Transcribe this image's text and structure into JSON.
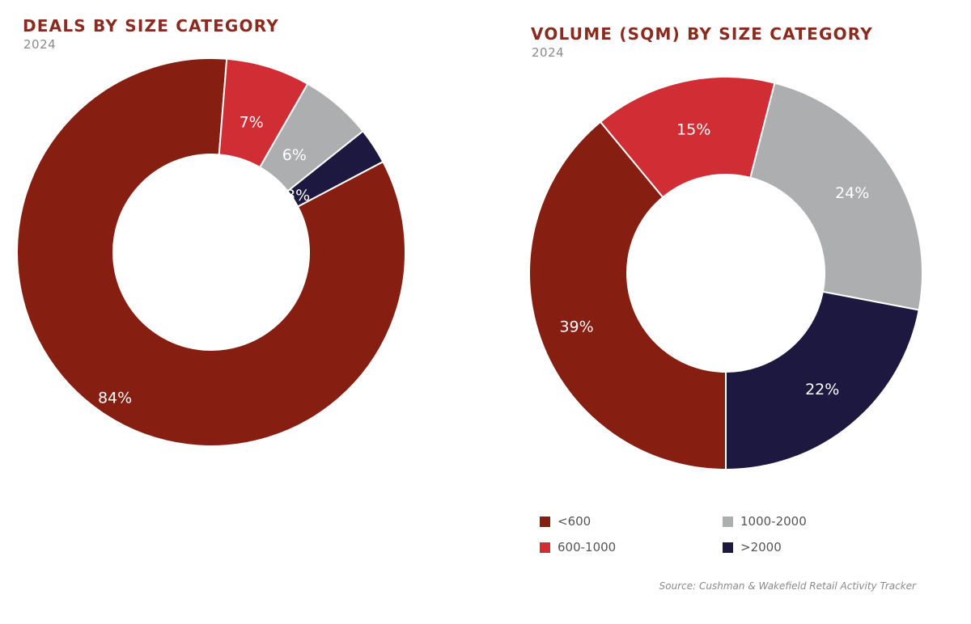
{
  "chart_data": [
    {
      "type": "pie",
      "title": "DEALS BY SIZE CATEGORY",
      "subtitle": "2024",
      "categories": [
        "<600",
        "600-1000",
        "1000-2000",
        ">2000"
      ],
      "values": [
        84,
        7,
        6,
        3
      ],
      "labels": [
        "84%",
        "7%",
        "6%",
        "3%"
      ],
      "colors": [
        "#861e12",
        "#d12d35",
        "#acaeaf",
        "#1c1840"
      ]
    },
    {
      "type": "pie",
      "title": "VOLUME (SQM) BY SIZE CATEGORY",
      "subtitle": "2024",
      "categories": [
        "<600",
        "600-1000",
        "1000-2000",
        ">2000"
      ],
      "values": [
        39,
        15,
        24,
        22
      ],
      "labels": [
        "39%",
        "15%",
        "24%",
        "22%"
      ],
      "colors": [
        "#861e12",
        "#d12d35",
        "#acaeaf",
        "#1c1840"
      ]
    }
  ],
  "legend": {
    "placement": "bottom-right",
    "items": [
      {
        "label": "<600",
        "color": "#861e12"
      },
      {
        "label": "1000-2000",
        "color": "#acaeaf"
      },
      {
        "label": "600-1000",
        "color": "#d12d35"
      },
      {
        "label": ">2000",
        "color": "#1c1840"
      }
    ]
  },
  "source": "Source: Cushman & Wakefield Retail Activity Tracker"
}
